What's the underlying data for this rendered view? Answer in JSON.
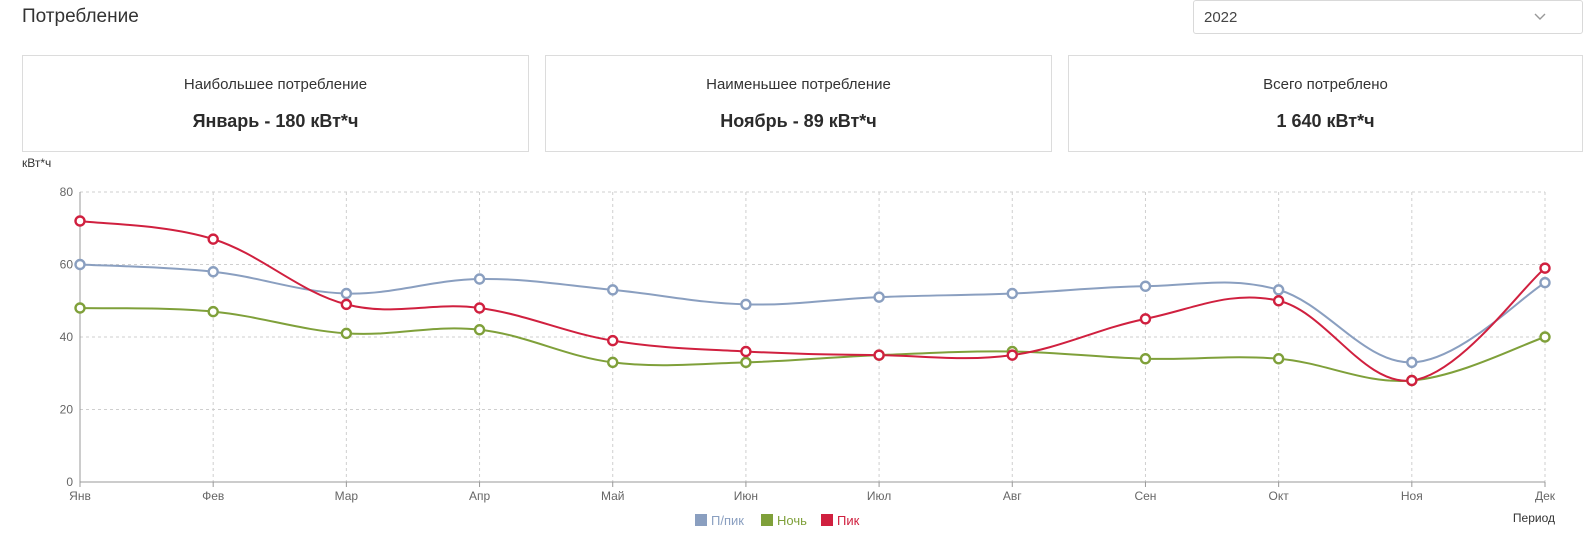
{
  "header": {
    "title": "Потребление",
    "year_select": {
      "value": "2022",
      "icon": "chevron-down-icon"
    }
  },
  "stats": [
    {
      "label": "Наибольшее потребление",
      "value": "Январь - 180 кВт*ч"
    },
    {
      "label": "Наименьшее потребление",
      "value": "Ноябрь - 89 кВт*ч"
    },
    {
      "label": "Всего потреблено",
      "value": "1 640 кВт*ч"
    }
  ],
  "chart_data": {
    "type": "line",
    "title": "",
    "ylabel": "кВт*ч",
    "xlabel": "Период",
    "ylim": [
      0,
      80
    ],
    "yticks": [
      0,
      20,
      40,
      60,
      80
    ],
    "grid": true,
    "smooth": true,
    "legend_position": "bottom-center",
    "categories": [
      "Янв",
      "Фев",
      "Мар",
      "Апр",
      "Май",
      "Июн",
      "Июл",
      "Авг",
      "Сен",
      "Окт",
      "Ноя",
      "Дек"
    ],
    "series": [
      {
        "name": "П/пик",
        "color": "#8a9fc0",
        "values": [
          60,
          58,
          52,
          56,
          53,
          49,
          51,
          52,
          54,
          53,
          33,
          55
        ]
      },
      {
        "name": "Ночь",
        "color": "#7fa03a",
        "values": [
          48,
          47,
          41,
          42,
          33,
          33,
          35,
          36,
          34,
          34,
          28,
          40
        ]
      },
      {
        "name": "Пик",
        "color": "#d0203f",
        "values": [
          72,
          67,
          49,
          48,
          39,
          36,
          35,
          35,
          45,
          50,
          28,
          59
        ]
      }
    ]
  }
}
